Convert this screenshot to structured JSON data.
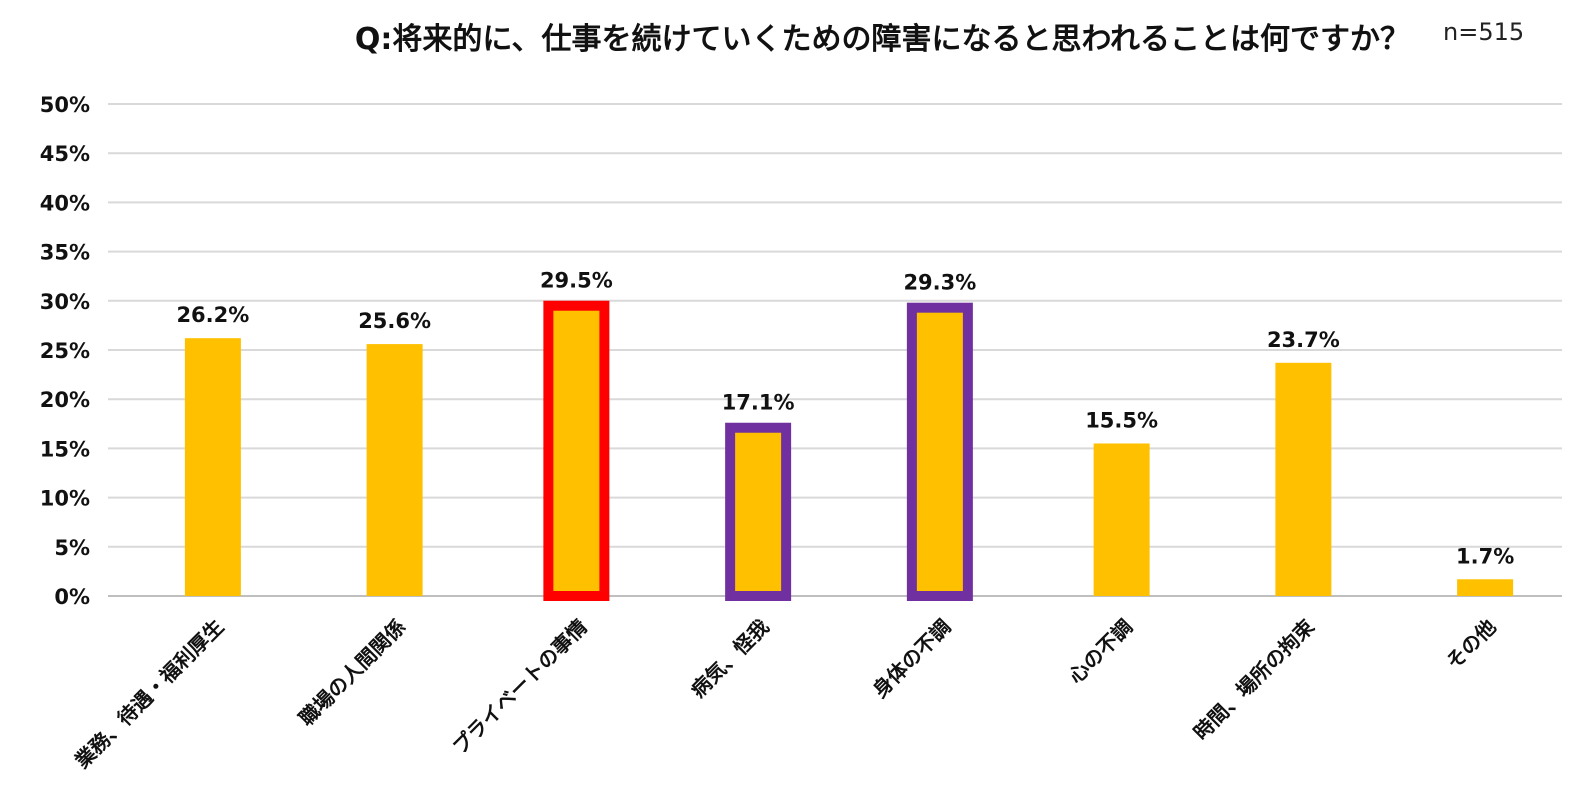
{
  "chart_data": {
    "type": "bar",
    "title": "Q:将来的に、仕事を続けていくための障害になると思われることは何ですか？",
    "subtitle": "n=515",
    "xlabel": "",
    "ylabel": "",
    "ylim": [
      0,
      50
    ],
    "y_ticks": [
      "0%",
      "5%",
      "10%",
      "15%",
      "20%",
      "25%",
      "30%",
      "35%",
      "40%",
      "45%",
      "50%"
    ],
    "grid": true,
    "legend": "none",
    "bar_color": "#FFC000",
    "categories": [
      "業務、待遇・福利厚生",
      "職場の人間関係",
      "プライベートの事情",
      "病気、怪我",
      "身体の不調",
      "心の不調",
      "時間、場所の拘束",
      "その他"
    ],
    "values": [
      26.2,
      25.6,
      29.5,
      17.1,
      29.3,
      15.5,
      23.7,
      1.7
    ],
    "value_labels": [
      "26.2%",
      "25.6%",
      "29.5%",
      "17.1%",
      "29.3%",
      "15.5%",
      "23.7%",
      "1.7%"
    ],
    "highlights": [
      {
        "category": "プライベートの事情",
        "color": "#FF0000"
      },
      {
        "category": "病気、怪我",
        "color": "#7030A0"
      },
      {
        "category": "身体の不調",
        "color": "#7030A0"
      }
    ]
  }
}
